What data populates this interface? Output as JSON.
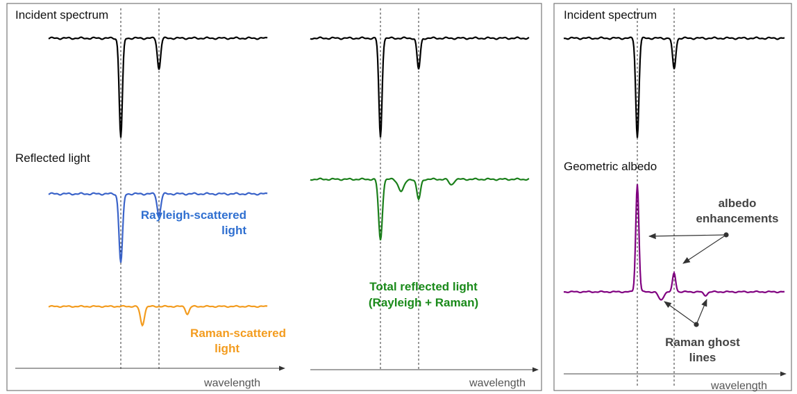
{
  "left_panel": {
    "incident_title": "Incident spectrum",
    "reflected_title": "Reflected light",
    "rayleigh_label": [
      "Rayleigh-scattered",
      "light"
    ],
    "raman_label": [
      "Raman-scattered",
      "light"
    ],
    "total_label": [
      "Total reflected light",
      "(Rayleigh + Raman)"
    ],
    "axis_labels": [
      "wavelength",
      "wavelength"
    ]
  },
  "right_panel": {
    "incident_title": "Incident spectrum",
    "albedo_title": "Geometric albedo",
    "enhancement_label": [
      "albedo",
      "enhancements"
    ],
    "ghost_label": [
      "Raman ghost",
      "lines"
    ],
    "axis_label": "wavelength"
  }
}
